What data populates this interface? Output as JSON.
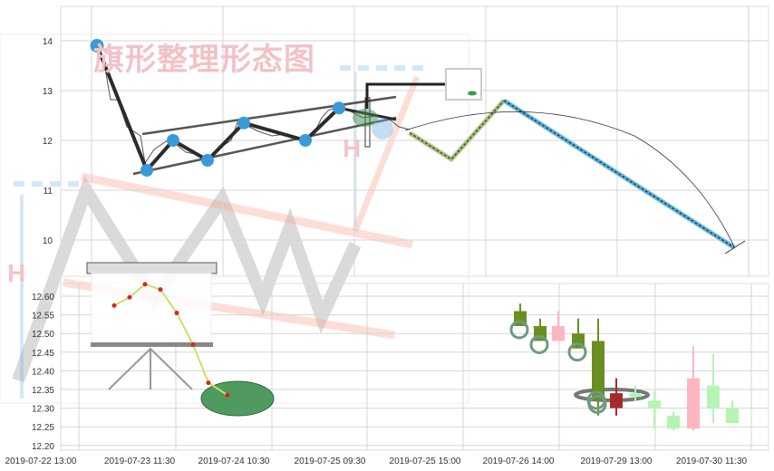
{
  "chart_data": [
    {
      "type": "line",
      "title": "",
      "watermark_title": "旗形整理形态图",
      "watermark_letters": [
        "H",
        "H"
      ],
      "y_ticks": [
        "14",
        "13",
        "12",
        "11",
        "10"
      ],
      "ylim": [
        9.5,
        14.6
      ],
      "grid": true,
      "pivot_points": [
        13.9,
        11.4,
        12.0,
        11.6,
        12.35,
        12.0,
        12.65
      ],
      "projection_green": [
        12.15,
        11.62,
        12.8
      ],
      "projection_blue": [
        12.8,
        9.85
      ],
      "colors": {
        "pivot": "#3a9ad9",
        "green_projection": "#a9c47f",
        "blue_projection": "#5fb6e0",
        "line": "#333333",
        "channel": "#555555"
      }
    },
    {
      "type": "candlestick",
      "y_ticks": [
        "12.60",
        "12.55",
        "12.50",
        "12.45",
        "12.40",
        "12.35",
        "12.30",
        "12.25",
        "12.20"
      ],
      "x_ticks": [
        "2019-07-22 13:00",
        "2019-07-23 11:30",
        "2019-07-24 10:30",
        "2019-07-25 09:30",
        "2019-07-25 15:00",
        "2019-07-26 14:00",
        "2019-07-29 13:00",
        "2019-07-30 11:30"
      ],
      "ylim": [
        12.18,
        12.63
      ],
      "grid": true,
      "candles": [
        {
          "open": 12.52,
          "close": 12.56,
          "high": 12.58,
          "low": 12.52,
          "color": "#6b8e23"
        },
        {
          "open": 12.48,
          "close": 12.52,
          "high": 12.54,
          "low": 12.48,
          "color": "#6b8e23"
        },
        {
          "open": 12.52,
          "close": 12.48,
          "high": 12.56,
          "low": 12.48,
          "color": "#ffb6c1"
        },
        {
          "open": 12.46,
          "close": 12.5,
          "high": 12.54,
          "low": 12.46,
          "color": "#6b8e23"
        },
        {
          "open": 12.32,
          "close": 12.48,
          "high": 12.54,
          "low": 12.28,
          "color": "#6b8e23"
        },
        {
          "open": 12.34,
          "close": 12.3,
          "high": 12.38,
          "low": 12.28,
          "color": "#a52a2a"
        },
        {
          "open": 12.33,
          "close": 12.34,
          "high": 12.36,
          "low": 12.32,
          "color": "#b4f5b4"
        },
        {
          "open": 12.3,
          "close": 12.32,
          "high": 12.345,
          "low": 12.245,
          "color": "#b4f5b4"
        },
        {
          "open": 12.245,
          "close": 12.28,
          "high": 12.29,
          "low": 12.24,
          "color": "#b4f5b4"
        },
        {
          "open": 12.38,
          "close": 12.245,
          "high": 12.465,
          "low": 12.24,
          "color": "#ffb6c1"
        },
        {
          "open": 12.3,
          "close": 12.36,
          "high": 12.445,
          "low": 12.26,
          "color": "#b4f5b4"
        },
        {
          "open": 12.26,
          "close": 12.3,
          "high": 12.32,
          "low": 12.26,
          "color": "#b4f5b4"
        }
      ],
      "marked_candles": [
        0,
        1,
        3,
        4
      ],
      "inset_line": [
        12.575,
        12.597,
        12.632,
        12.618,
        12.555,
        12.47,
        12.368,
        12.335
      ]
    }
  ]
}
